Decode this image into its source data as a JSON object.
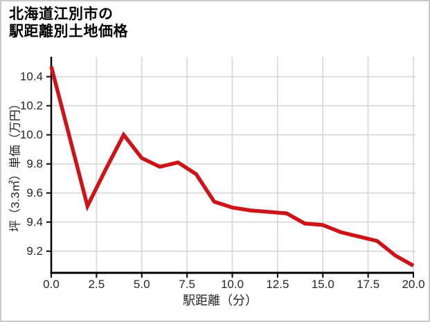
{
  "title": {
    "line1": "北海道江別市の",
    "line2": "駅距離別土地価格"
  },
  "colors": {
    "line": "#cc1419",
    "grid": "#d6d6d6",
    "axis": "#000000",
    "text": "#262626",
    "figure_border": "#c9c9c9",
    "background": "#ffffff"
  },
  "chart_data": {
    "type": "line",
    "title": "北海道江別市の駅距離別土地価格",
    "xlabel": "駅距離（分）",
    "ylabel": "坪（3.3㎡）単価（万円）",
    "x": [
      0,
      1,
      2,
      3,
      4,
      5,
      6,
      7,
      8,
      9,
      10,
      11,
      12,
      13,
      14,
      15,
      16,
      17,
      18,
      19,
      20
    ],
    "values": [
      10.47,
      9.99,
      9.51,
      9.76,
      10.0,
      9.84,
      9.78,
      9.81,
      9.73,
      9.54,
      9.5,
      9.48,
      9.47,
      9.46,
      9.39,
      9.38,
      9.33,
      9.3,
      9.27,
      9.17,
      9.1
    ],
    "x_ticks": [
      0,
      2.5,
      5,
      7.5,
      10,
      12.5,
      15,
      17.5,
      20
    ],
    "x_tick_labels": [
      "0.0",
      "2.5",
      "5.0",
      "7.5",
      "10.0",
      "12.5",
      "15.0",
      "17.5",
      "20.0"
    ],
    "y_ticks": [
      10.4,
      10.2,
      10.0,
      9.8,
      9.6,
      9.4,
      9.2
    ],
    "y_tick_labels": [
      "10.4",
      "10.2",
      "10.0",
      "9.8",
      "9.6",
      "9.4",
      "9.2"
    ],
    "xlim": [
      0,
      20
    ],
    "ylim": [
      9.05,
      10.54
    ],
    "grid": true,
    "legend": false
  }
}
